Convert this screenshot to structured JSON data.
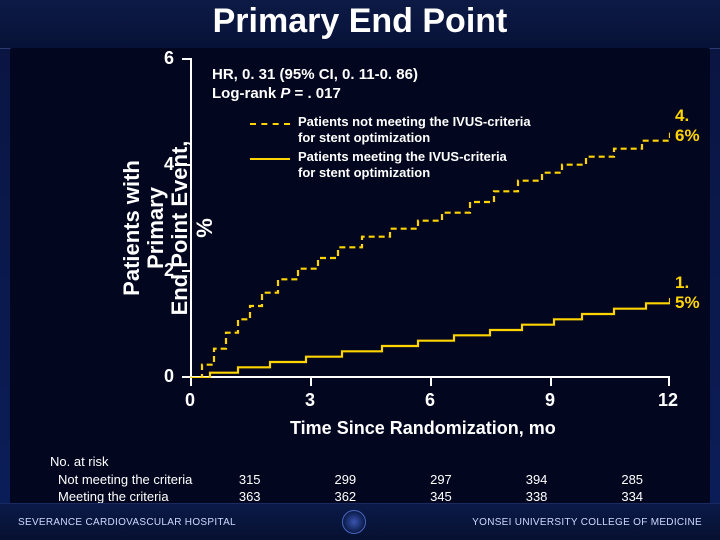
{
  "title": "Primary End Point",
  "ylabel_line1": "Patients with Primary",
  "ylabel_line2": "End Point Event, %",
  "xlabel": "Time Since Randomization, mo",
  "chart": {
    "type": "km-step",
    "xlim": [
      0,
      12
    ],
    "ylim": [
      0,
      6
    ],
    "xticks": [
      0,
      3,
      6,
      9,
      12
    ],
    "yticks": [
      0,
      2,
      4,
      6
    ],
    "axis_color": "#ffffff",
    "background_color": "#02061e",
    "series": [
      {
        "name": "not_meeting",
        "color": "#ffd400",
        "dash": "6,4",
        "line_width": 2.2,
        "end_label": "4. 6%",
        "points": [
          [
            0,
            0
          ],
          [
            0.3,
            0.25
          ],
          [
            0.6,
            0.55
          ],
          [
            0.9,
            0.85
          ],
          [
            1.2,
            1.1
          ],
          [
            1.5,
            1.35
          ],
          [
            1.8,
            1.6
          ],
          [
            2.2,
            1.85
          ],
          [
            2.7,
            2.05
          ],
          [
            3.2,
            2.25
          ],
          [
            3.7,
            2.45
          ],
          [
            4.3,
            2.65
          ],
          [
            5.0,
            2.8
          ],
          [
            5.7,
            2.95
          ],
          [
            6.3,
            3.1
          ],
          [
            7.0,
            3.3
          ],
          [
            7.6,
            3.5
          ],
          [
            8.2,
            3.7
          ],
          [
            8.8,
            3.85
          ],
          [
            9.3,
            4.0
          ],
          [
            9.9,
            4.15
          ],
          [
            10.6,
            4.3
          ],
          [
            11.3,
            4.45
          ],
          [
            12,
            4.6
          ]
        ]
      },
      {
        "name": "meeting",
        "color": "#ffd400",
        "dash": "",
        "line_width": 2.2,
        "end_label": "1. 5%",
        "points": [
          [
            0,
            0
          ],
          [
            0.5,
            0.1
          ],
          [
            1.2,
            0.2
          ],
          [
            2.0,
            0.3
          ],
          [
            2.9,
            0.4
          ],
          [
            3.8,
            0.5
          ],
          [
            4.8,
            0.6
          ],
          [
            5.7,
            0.7
          ],
          [
            6.6,
            0.8
          ],
          [
            7.5,
            0.9
          ],
          [
            8.3,
            1.0
          ],
          [
            9.1,
            1.1
          ],
          [
            9.8,
            1.2
          ],
          [
            10.6,
            1.3
          ],
          [
            11.4,
            1.4
          ],
          [
            12,
            1.5
          ]
        ]
      }
    ]
  },
  "hr_line1": "HR, 0. 31 (95% CI, 0. 11-0. 86)",
  "hr_line2": "Log-rank P = . 017",
  "legend": {
    "not_meeting_line1": "Patients not meeting the IVUS-criteria",
    "not_meeting_line2": "for stent optimization",
    "meeting_line1": "Patients meeting the IVUS-criteria",
    "meeting_line2": "for stent optimization"
  },
  "risk": {
    "header": "No. at risk",
    "rows": [
      {
        "label": "Not meeting the criteria",
        "values": [
          "315",
          "299",
          "297",
          "394",
          "285"
        ]
      },
      {
        "label": "Meeting the criteria",
        "values": [
          "363",
          "362",
          "345",
          "338",
          "334"
        ]
      }
    ]
  },
  "footer": {
    "left": "SEVERANCE CARDIOVASCULAR HOSPITAL",
    "right": "YONSEI UNIVERSITY COLLEGE OF MEDICINE"
  }
}
